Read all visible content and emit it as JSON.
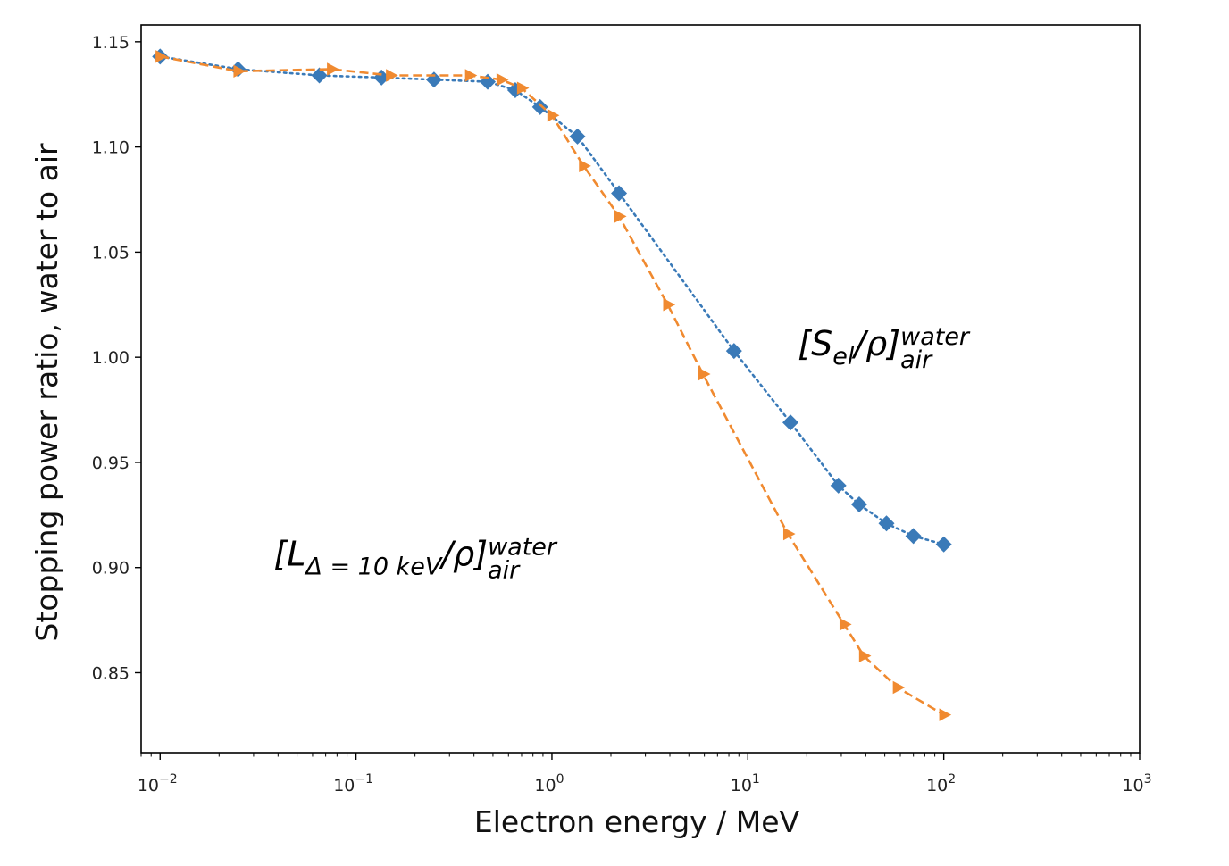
{
  "chart_data": {
    "type": "line",
    "xlabel": "Electron energy / MeV",
    "ylabel": "Stopping power ratio, water to air",
    "xscale": "log",
    "xlim": [
      0.008,
      1000
    ],
    "ylim": [
      0.812,
      1.158
    ],
    "x_ticks": [
      {
        "value": 0.01,
        "base": "10",
        "exp": "−2"
      },
      {
        "value": 0.1,
        "base": "10",
        "exp": "−1"
      },
      {
        "value": 1,
        "base": "10",
        "exp": "0"
      },
      {
        "value": 10,
        "base": "10",
        "exp": "1"
      },
      {
        "value": 100,
        "base": "10",
        "exp": "2"
      },
      {
        "value": 1000,
        "base": "10",
        "exp": "3"
      }
    ],
    "y_ticks": [
      {
        "value": 0.85,
        "label": "0.85"
      },
      {
        "value": 0.9,
        "label": "0.90"
      },
      {
        "value": 0.95,
        "label": "0.95"
      },
      {
        "value": 1.0,
        "label": "1.00"
      },
      {
        "value": 1.05,
        "label": "1.05"
      },
      {
        "value": 1.1,
        "label": "1.10"
      },
      {
        "value": 1.15,
        "label": "1.15"
      }
    ],
    "grid": false,
    "series": [
      {
        "color": "#3a7ab8",
        "marker": "diamond",
        "linestyle": "dotted",
        "x": [
          0.01,
          0.025,
          0.065,
          0.135,
          0.25,
          0.47,
          0.65,
          0.87,
          1.35,
          2.2,
          8.5,
          16.5,
          29,
          37,
          51,
          70,
          100
        ],
        "y": [
          1.143,
          1.137,
          1.134,
          1.133,
          1.132,
          1.131,
          1.127,
          1.119,
          1.105,
          1.078,
          1.003,
          0.969,
          0.939,
          0.93,
          0.921,
          0.915,
          0.911
        ]
      },
      {
        "color": "#f08a30",
        "marker": "triangle-right",
        "linestyle": "dashed",
        "x": [
          0.01,
          0.025,
          0.075,
          0.15,
          0.38,
          0.55,
          0.7,
          1.0,
          1.45,
          2.2,
          3.9,
          5.9,
          16,
          31,
          39,
          58,
          100
        ],
        "y": [
          1.143,
          1.136,
          1.137,
          1.134,
          1.134,
          1.132,
          1.128,
          1.115,
          1.091,
          1.067,
          1.025,
          0.992,
          0.916,
          0.873,
          0.858,
          0.843,
          0.83
        ]
      }
    ],
    "annotations": [
      {
        "id": "s-el",
        "x": 18,
        "y": 1.001,
        "base": "[S",
        "sub1": "el",
        "mid": "/ρ]",
        "sub2": "air",
        "sup": "water"
      },
      {
        "id": "l-delta",
        "x": 0.038,
        "y": 0.901,
        "base": "[L",
        "sub1": "Δ = 10 keV",
        "mid": "/ρ]",
        "sub2": "air",
        "sup": "water"
      }
    ]
  }
}
